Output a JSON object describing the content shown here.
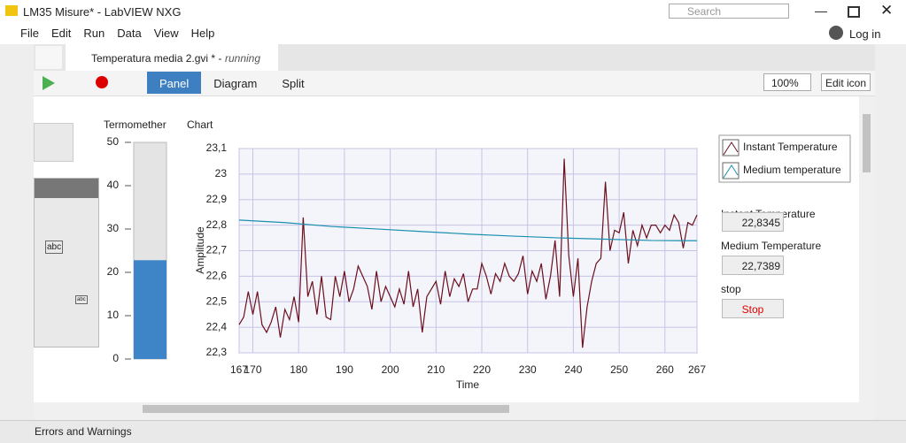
{
  "window": {
    "title": "LM35 Misure* - LabVIEW NXG",
    "search_placeholder": "Search"
  },
  "menu": [
    "File",
    "Edit",
    "Run",
    "Data",
    "View",
    "Help"
  ],
  "login": "Log in",
  "tab": {
    "title": "Temperatura media 2.gvi * -",
    "status": "running"
  },
  "toolbar": {
    "views": [
      "Panel",
      "Diagram",
      "Split"
    ],
    "zoom": "100%",
    "edit_icon": "Edit icon"
  },
  "palette": {
    "labels": [
      "abc",
      "abc"
    ]
  },
  "thermometer": {
    "label": "Termomether",
    "value": 22.8,
    "ylim": [
      0,
      50
    ],
    "yticks": [
      0,
      10,
      20,
      30,
      40,
      50
    ],
    "color": "#3d85c6"
  },
  "chart_data": {
    "type": "line",
    "title": "Chart",
    "x_label": "Time",
    "y_label": "Amplitude",
    "xlim": [
      167,
      267
    ],
    "xticks": [
      167,
      170,
      180,
      190,
      200,
      210,
      220,
      230,
      240,
      250,
      260,
      267
    ],
    "ylim": [
      22.3,
      23.1
    ],
    "yticks": [
      {
        "value": 22.3,
        "label": "22,3"
      },
      {
        "value": 22.4,
        "label": "22,4"
      },
      {
        "value": 22.5,
        "label": "22,5"
      },
      {
        "value": 22.6,
        "label": "22,6"
      },
      {
        "value": 22.7,
        "label": "22,7"
      },
      {
        "value": 22.8,
        "label": "22,8"
      },
      {
        "value": 22.9,
        "label": "22,9"
      },
      23,
      {
        "value": 23.1,
        "label": "23,1"
      }
    ],
    "grid": true,
    "legend": "right",
    "series": [
      {
        "name": "Instant Temperature",
        "color": "#6b0f1e",
        "x": [
          167,
          168,
          169,
          170,
          171,
          172,
          173,
          174,
          175,
          176,
          177,
          178,
          179,
          180,
          181,
          182,
          183,
          184,
          185,
          186,
          187,
          188,
          189,
          190,
          191,
          192,
          193,
          194,
          195,
          196,
          197,
          198,
          199,
          200,
          201,
          202,
          203,
          204,
          205,
          206,
          207,
          208,
          209,
          210,
          211,
          212,
          213,
          214,
          215,
          216,
          217,
          218,
          219,
          220,
          221,
          222,
          223,
          224,
          225,
          226,
          227,
          228,
          229,
          230,
          231,
          232,
          233,
          234,
          235,
          236,
          237,
          238,
          239,
          240,
          241,
          242,
          243,
          244,
          245,
          246,
          247,
          248,
          249,
          250,
          251,
          252,
          253,
          254,
          255,
          256,
          257,
          258,
          259,
          260,
          261,
          262,
          263,
          264,
          265,
          266,
          267
        ],
        "values": [
          22.41,
          22.44,
          22.54,
          22.45,
          22.54,
          22.41,
          22.38,
          22.42,
          22.48,
          22.36,
          22.47,
          22.43,
          22.52,
          22.42,
          22.83,
          22.52,
          22.58,
          22.45,
          22.6,
          22.44,
          22.43,
          22.6,
          22.52,
          22.62,
          22.5,
          22.55,
          22.64,
          22.6,
          22.56,
          22.47,
          22.62,
          22.5,
          22.56,
          22.52,
          22.48,
          22.55,
          22.49,
          22.62,
          22.48,
          22.55,
          22.38,
          22.52,
          22.55,
          22.58,
          22.49,
          22.62,
          22.52,
          22.59,
          22.56,
          22.61,
          22.5,
          22.55,
          22.55,
          22.65,
          22.6,
          22.53,
          22.61,
          22.58,
          22.65,
          22.6,
          22.58,
          22.61,
          22.68,
          22.53,
          22.62,
          22.58,
          22.65,
          22.51,
          22.6,
          22.74,
          22.52,
          23.06,
          22.68,
          22.52,
          22.67,
          22.32,
          22.48,
          22.58,
          22.65,
          22.67,
          22.97,
          22.7,
          22.78,
          22.77,
          22.85,
          22.65,
          22.78,
          22.72,
          22.8,
          22.75,
          22.8,
          22.8,
          22.77,
          22.8,
          22.78,
          22.84,
          22.81,
          22.71,
          22.81,
          22.8,
          22.84
        ]
      },
      {
        "name": "Medium temperature",
        "color": "#1a8fb0",
        "x": [
          167,
          177,
          187,
          197,
          207,
          217,
          227,
          237,
          247,
          257,
          267
        ],
        "values": [
          22.82,
          22.81,
          22.795,
          22.785,
          22.775,
          22.765,
          22.757,
          22.75,
          22.745,
          22.74,
          22.739
        ]
      }
    ]
  },
  "indicators": [
    {
      "label": "Instant Temperature",
      "value": "22,8345"
    },
    {
      "label": "Medium Temperature",
      "value": "22,7389"
    }
  ],
  "stop": {
    "label": "stop",
    "button": "Stop"
  },
  "status_bar": "Errors and Warnings"
}
